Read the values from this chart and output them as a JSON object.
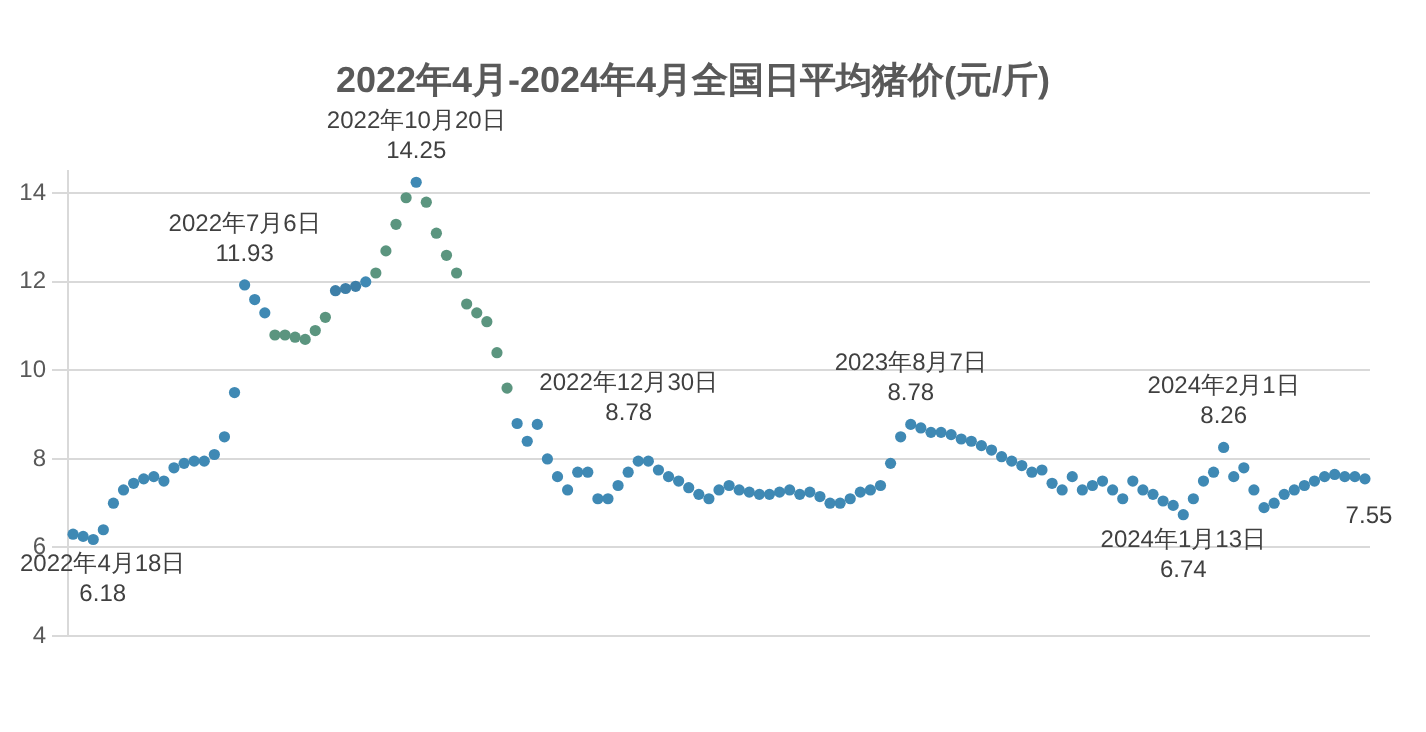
{
  "chart_data": {
    "type": "scatter",
    "title": "2022年4月-2024年4月全国日平均猪价(元/斤)",
    "categories": [
      null,
      null,
      null,
      null,
      null,
      null,
      null,
      null,
      null,
      null,
      null,
      null,
      null,
      null,
      null,
      null,
      null,
      null,
      null,
      null,
      null,
      null,
      null,
      null,
      null,
      null,
      null,
      null,
      null,
      null,
      null,
      null,
      null,
      null,
      null,
      null,
      null,
      null,
      null,
      null,
      null,
      null,
      null,
      null,
      null,
      null,
      null,
      null,
      null,
      null,
      null,
      null,
      null,
      null,
      null,
      null,
      null,
      null,
      null,
      null,
      null,
      null,
      null,
      null,
      null,
      null,
      null,
      null,
      null,
      null,
      null,
      null,
      null,
      null,
      null,
      null,
      null,
      null,
      null,
      null,
      null,
      null,
      null,
      null,
      null,
      null,
      null,
      null,
      null,
      null,
      null,
      null,
      null,
      null,
      null,
      null,
      null,
      null,
      null,
      null,
      null,
      null,
      null,
      null,
      null,
      null,
      null,
      null,
      null,
      null,
      null,
      null,
      null,
      null,
      null,
      null,
      null,
      null,
      null,
      null,
      null,
      null,
      null,
      null,
      null,
      null,
      null,
      null,
      null
    ],
    "series": [
      {
        "color": "#3f89b4",
        "values": [
          6.3,
          6.25,
          6.18,
          6.4,
          7.0,
          7.3,
          7.45,
          7.55,
          7.6,
          7.5,
          7.8,
          7.9,
          7.95,
          7.95,
          8.1,
          8.5,
          9.5,
          11.93,
          11.6,
          11.3,
          10.8,
          10.8,
          10.75,
          10.7,
          10.9,
          11.2,
          11.8,
          11.85,
          11.9,
          12.0,
          12.2,
          12.7,
          13.3,
          13.9,
          14.25,
          13.8,
          13.1,
          12.6,
          12.2,
          11.5,
          11.3,
          11.1,
          10.4,
          9.6,
          8.8,
          8.4,
          8.78,
          8.0,
          7.6,
          7.3,
          7.7,
          7.7,
          7.1,
          7.1,
          7.4,
          7.7,
          7.95,
          7.95,
          7.75,
          7.6,
          7.5,
          7.35,
          7.2,
          7.1,
          7.3,
          7.4,
          7.3,
          7.25,
          7.2,
          7.2,
          7.25,
          7.3,
          7.2,
          7.25,
          7.15,
          7.0,
          7.0,
          7.1,
          7.25,
          7.3,
          7.4,
          7.9,
          8.5,
          8.78,
          8.7,
          8.6,
          8.6,
          8.55,
          8.45,
          8.4,
          8.3,
          8.2,
          8.05,
          7.95,
          7.85,
          7.7,
          7.75,
          7.45,
          7.3,
          7.6,
          7.3,
          7.4,
          7.5,
          7.3,
          7.1,
          7.5,
          7.3,
          7.2,
          7.05,
          6.95,
          6.74,
          7.1,
          7.5,
          7.7,
          8.26,
          7.6,
          7.8,
          7.3,
          6.9,
          7.0,
          7.2,
          7.3,
          7.4,
          7.5,
          7.6,
          7.65,
          7.6,
          7.6,
          7.55
        ],
        "colors": [
          null,
          null,
          null,
          null,
          null,
          null,
          null,
          null,
          null,
          null,
          null,
          null,
          null,
          null,
          null,
          null,
          null,
          null,
          null,
          null,
          "#5b957f",
          "#5b957f",
          "#5b957f",
          "#5b957f",
          "#5b957f",
          "#5b957f",
          "#3d7fa8",
          "#3d7fa8",
          "#3d7fa8",
          null,
          "#5b957f",
          "#5b957f",
          "#5b957f",
          "#5b957f",
          null,
          "#5b957f",
          "#5b957f",
          "#5b957f",
          "#5b957f",
          "#5b957f",
          "#5b957f",
          "#5b957f",
          "#5b957f",
          "#5b957f",
          null,
          null,
          null,
          null,
          null,
          null,
          null,
          null,
          null,
          null,
          null,
          null,
          null,
          null,
          null,
          null,
          null,
          null,
          null,
          null,
          null,
          null,
          null,
          null,
          null,
          null,
          null,
          null,
          null,
          null,
          null,
          null,
          null,
          null,
          null,
          null,
          null,
          null,
          null,
          null,
          null,
          null,
          null,
          null,
          null,
          null,
          null,
          null,
          null,
          null,
          null,
          null,
          null,
          null,
          null,
          null,
          null,
          null,
          null,
          null,
          null,
          null,
          null,
          null,
          null,
          null,
          null,
          null,
          null,
          null,
          null,
          null,
          null,
          null,
          null,
          null,
          null,
          null,
          null,
          null,
          null,
          null,
          null,
          null,
          null
        ]
      }
    ],
    "ylim": [
      4,
      14.5
    ],
    "yticks": [
      4,
      6,
      8,
      10,
      12,
      14
    ],
    "grid": "y",
    "marker": "circle",
    "tick_labels": "y",
    "annotations": [
      "2022年4月18日\n6.18",
      "2022年7月6日\n11.93",
      "2022年10月20日\n14.25",
      "2022年12月30日\n8.78",
      "2023年8月7日\n8.78",
      "2024年1月13日\n6.74",
      "2024年2月1日\n8.26",
      "7.55"
    ]
  }
}
